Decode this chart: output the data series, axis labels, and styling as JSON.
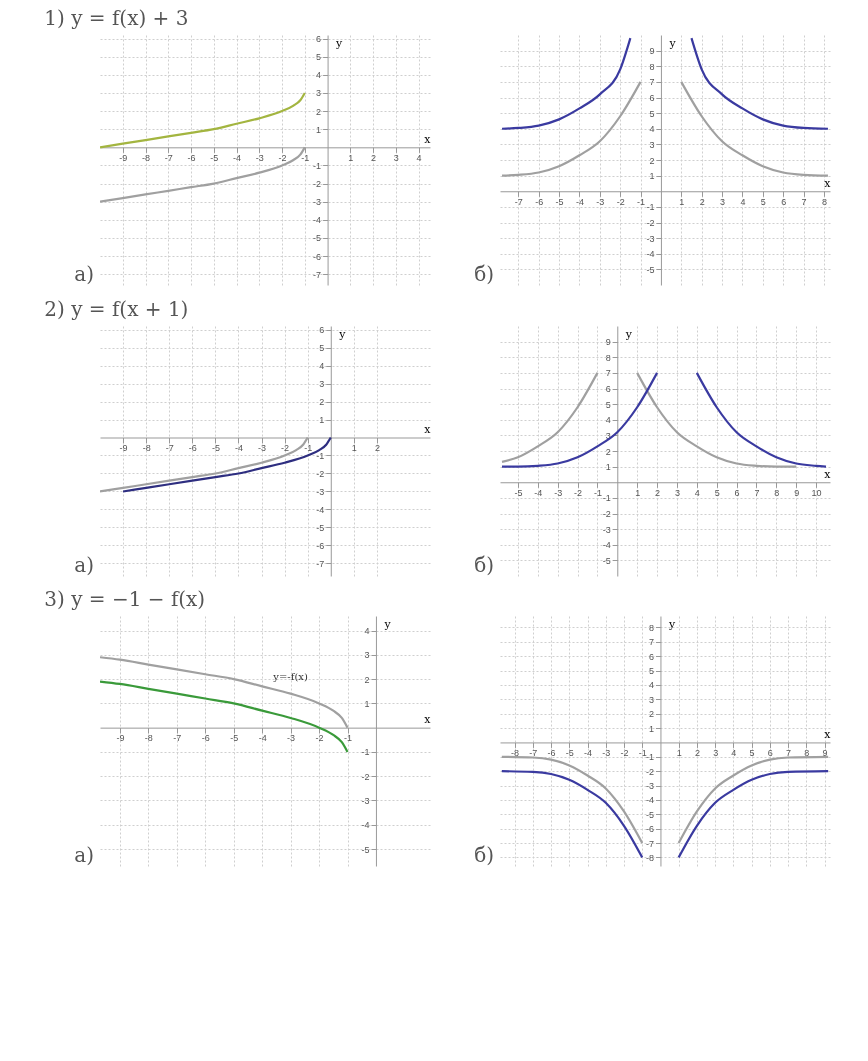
{
  "chart_data": [
    {
      "type": "line",
      "title": "1) y = f(x) + 3",
      "xlabel": "x",
      "ylabel": "y",
      "annotations": [
        "а)"
      ],
      "grid": true,
      "xlim": [
        -10,
        4.5
      ],
      "ylim": [
        -7.6,
        6.2
      ],
      "xticks": [
        -9,
        -8,
        -7,
        -6,
        -5,
        -4,
        -3,
        -2,
        -1,
        1,
        2,
        3,
        4
      ],
      "yticks": [
        -7,
        -6,
        -5,
        -4,
        -3,
        -2,
        -1,
        1,
        2,
        3,
        4,
        5,
        6
      ],
      "series": [
        {
          "color": "#a0a0a0",
          "x": [
            -10,
            -9,
            -8,
            -7,
            -6,
            -5,
            -4,
            -3,
            -2,
            -1.5,
            -1.2,
            -1
          ],
          "values": [
            -3,
            -2.8,
            -2.6,
            -2.4,
            -2.2,
            -2,
            -1.7,
            -1.4,
            -1,
            -0.7,
            -0.4,
            0
          ]
        },
        {
          "color": "#a3b540",
          "x": [
            -10,
            -9,
            -8,
            -7,
            -6,
            -5,
            -4,
            -3,
            -2,
            -1.5,
            -1.2,
            -1
          ],
          "values": [
            0,
            0.2,
            0.4,
            0.6,
            0.8,
            1,
            1.3,
            1.6,
            2,
            2.3,
            2.6,
            3
          ]
        }
      ]
    },
    {
      "type": "line",
      "xlabel": "x",
      "ylabel": "y",
      "annotations": [
        "б)"
      ],
      "grid": true,
      "xlim": [
        -7.9,
        8.3
      ],
      "ylim": [
        -6,
        10
      ],
      "xticks": [
        -7,
        -6,
        -5,
        -4,
        -3,
        -2,
        -1,
        1,
        2,
        3,
        4,
        5,
        6,
        7,
        8
      ],
      "yticks": [
        -5,
        -4,
        -3,
        -2,
        -1,
        1,
        2,
        3,
        4,
        5,
        6,
        7,
        8,
        9
      ],
      "series": [
        {
          "color": "#a0a0a0",
          "x": [
            -7.8,
            -7,
            -6,
            -5,
            -4,
            -3,
            -2,
            -1
          ],
          "values": [
            1,
            1.05,
            1.2,
            1.6,
            2.3,
            3.2,
            4.8,
            7
          ]
        },
        {
          "color": "#a0a0a0",
          "x": [
            1,
            2,
            3,
            4,
            5,
            6,
            7,
            8.2
          ],
          "values": [
            7,
            4.8,
            3.2,
            2.3,
            1.6,
            1.2,
            1.05,
            1
          ]
        },
        {
          "color": "#3a3aa0",
          "x": [
            -7.8,
            -7,
            -6,
            -5,
            -4,
            -3,
            -2,
            -1.5
          ],
          "values": [
            4,
            4.05,
            4.2,
            4.6,
            5.3,
            6.2,
            7.8,
            9.8
          ]
        },
        {
          "color": "#3a3aa0",
          "x": [
            1.5,
            2,
            3,
            4,
            5,
            6,
            7,
            8.2
          ],
          "values": [
            9.8,
            7.8,
            6.2,
            5.3,
            4.6,
            4.2,
            4.05,
            4
          ]
        }
      ]
    },
    {
      "type": "line",
      "title": "2) y = f(x + 1)",
      "xlabel": "x",
      "ylabel": "y",
      "annotations": [
        "а)"
      ],
      "grid": true,
      "xlim": [
        -10,
        4.3
      ],
      "ylim": [
        -7.7,
        6.2
      ],
      "xticks": [
        -9,
        -8,
        -7,
        -6,
        -5,
        -4,
        -3,
        -2,
        -1,
        1,
        2
      ],
      "yticks": [
        -7,
        -6,
        -5,
        -4,
        -3,
        -2,
        -1,
        1,
        2,
        3,
        4,
        5,
        6
      ],
      "series": [
        {
          "color": "#a0a0a0",
          "x": [
            -10,
            -9,
            -8,
            -7,
            -6,
            -5,
            -4,
            -3,
            -2,
            -1.5,
            -1.2,
            -1
          ],
          "values": [
            -3,
            -2.8,
            -2.6,
            -2.4,
            -2.2,
            -2,
            -1.7,
            -1.4,
            -1,
            -0.7,
            -0.4,
            0
          ]
        },
        {
          "color": "#2e2e80",
          "x": [
            -9,
            -8,
            -7,
            -6,
            -5,
            -4,
            -3,
            -2,
            -1,
            -0.5,
            -0.2,
            0
          ],
          "values": [
            -3,
            -2.8,
            -2.6,
            -2.4,
            -2.2,
            -2,
            -1.7,
            -1.4,
            -1,
            -0.7,
            -0.4,
            0
          ]
        }
      ]
    },
    {
      "type": "line",
      "xlabel": "x",
      "ylabel": "y",
      "annotations": [
        "б)"
      ],
      "grid": true,
      "xlim": [
        -5.9,
        10.7
      ],
      "ylim": [
        -6,
        10
      ],
      "xticks": [
        -5,
        -4,
        -3,
        -2,
        -1,
        1,
        2,
        3,
        4,
        5,
        6,
        7,
        8,
        9,
        10
      ],
      "yticks": [
        -5,
        -4,
        -3,
        -2,
        -1,
        1,
        2,
        3,
        4,
        5,
        6,
        7,
        8,
        9
      ],
      "series": [
        {
          "color": "#a0a0a0",
          "x": [
            -5.8,
            -5,
            -4,
            -3,
            -2,
            -1
          ],
          "values": [
            1.3,
            1.6,
            2.3,
            3.2,
            4.8,
            7
          ]
        },
        {
          "color": "#a0a0a0",
          "x": [
            1,
            2,
            3,
            4,
            5,
            6,
            7,
            8,
            9
          ],
          "values": [
            7,
            4.8,
            3.2,
            2.3,
            1.6,
            1.2,
            1.05,
            1,
            1
          ]
        },
        {
          "color": "#3a3aa0",
          "x": [
            -5.8,
            -5,
            -4,
            -3,
            -2,
            -1,
            0,
            1,
            2
          ],
          "values": [
            1,
            1,
            1.05,
            1.2,
            1.6,
            2.3,
            3.2,
            4.8,
            7
          ]
        },
        {
          "color": "#3a3aa0",
          "x": [
            4,
            5,
            6,
            7,
            8,
            9,
            10,
            10.5
          ],
          "values": [
            7,
            4.8,
            3.2,
            2.3,
            1.6,
            1.2,
            1.05,
            1
          ]
        }
      ]
    },
    {
      "type": "line",
      "title": "3) y = −1 − f(x)",
      "xlabel": "x",
      "ylabel": "y",
      "annotations": [
        "а)",
        {
          "text": "y=-f(x)",
          "x": -3,
          "y": 1.4
        }
      ],
      "grid": true,
      "xlim": [
        -9.7,
        1.9
      ],
      "ylim": [
        -5.7,
        4.6
      ],
      "xticks": [
        -9,
        -8,
        -7,
        -6,
        -5,
        -4,
        -3,
        -2,
        -1
      ],
      "yticks": [
        -5,
        -4,
        -3,
        -2,
        -1,
        1,
        2,
        3,
        4
      ],
      "series": [
        {
          "color": "#a0a0a0",
          "x": [
            -9.7,
            -9,
            -8,
            -7,
            -6,
            -5,
            -4,
            -3,
            -2,
            -1.5,
            -1.2,
            -1
          ],
          "values": [
            2.9,
            2.8,
            2.6,
            2.4,
            2.2,
            2,
            1.7,
            1.4,
            1,
            0.7,
            0.4,
            0
          ]
        },
        {
          "color": "#3a9a3a",
          "x": [
            -9.7,
            -9,
            -8,
            -7,
            -6,
            -5,
            -4,
            -3,
            -2,
            -1.5,
            -1.2,
            -1
          ],
          "values": [
            1.9,
            1.8,
            1.6,
            1.4,
            1.2,
            1,
            0.7,
            0.4,
            0,
            -0.3,
            -0.6,
            -1
          ]
        }
      ]
    },
    {
      "type": "line",
      "xlabel": "x",
      "ylabel": "y",
      "annotations": [
        "б)"
      ],
      "grid": true,
      "xlim": [
        -8.8,
        9.3
      ],
      "ylim": [
        -8.6,
        8.8
      ],
      "xticks": [
        -8,
        -7,
        -6,
        -5,
        -4,
        -3,
        -2,
        -1,
        1,
        2,
        3,
        4,
        5,
        6,
        7,
        8,
        9
      ],
      "yticks": [
        -8,
        -7,
        -6,
        -5,
        -4,
        -3,
        -2,
        -1,
        1,
        2,
        3,
        4,
        5,
        6,
        7,
        8
      ],
      "series": [
        {
          "color": "#a0a0a0",
          "x": [
            -8.7,
            -7,
            -6,
            -5,
            -4,
            -3,
            -2,
            -1
          ],
          "values": [
            -1,
            -1.05,
            -1.2,
            -1.6,
            -2.3,
            -3.2,
            -4.8,
            -7
          ]
        },
        {
          "color": "#a0a0a0",
          "x": [
            1,
            2,
            3,
            4,
            5,
            6,
            7,
            9.2
          ],
          "values": [
            -7,
            -4.8,
            -3.2,
            -2.3,
            -1.6,
            -1.2,
            -1.05,
            -1
          ]
        },
        {
          "color": "#3a3aa0",
          "x": [
            -8.7,
            -7,
            -6,
            -5,
            -4,
            -3,
            -2,
            -1
          ],
          "values": [
            -2,
            -2.05,
            -2.2,
            -2.6,
            -3.3,
            -4.2,
            -5.8,
            -8
          ]
        },
        {
          "color": "#3a3aa0",
          "x": [
            1,
            2,
            3,
            4,
            5,
            6,
            7,
            9.2
          ],
          "values": [
            -8,
            -5.8,
            -4.2,
            -3.3,
            -2.6,
            -2.2,
            -2.05,
            -2
          ]
        }
      ]
    }
  ]
}
